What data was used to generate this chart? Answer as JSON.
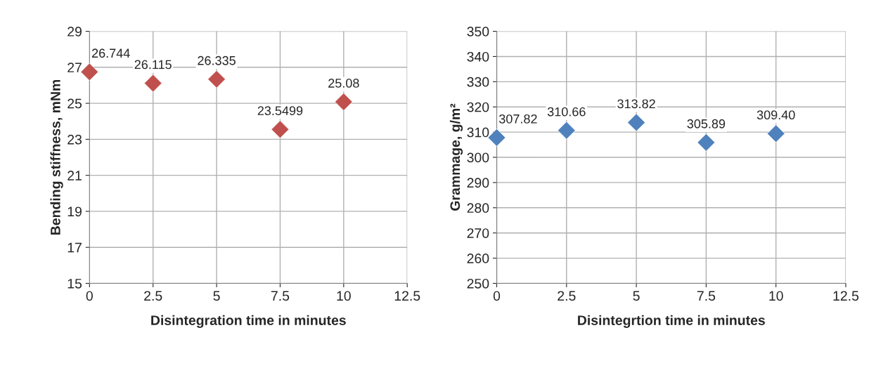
{
  "chart_data": [
    {
      "type": "scatter",
      "xlabel": "Disintegration time in minutes",
      "ylabel": "Bending stiffness, mNm",
      "x": [
        0,
        2.5,
        5,
        7.5,
        10
      ],
      "series": [
        {
          "color": "#c0504d",
          "values": [
            26.744,
            26.115,
            26.335,
            23.5499,
            25.08
          ]
        }
      ],
      "value_labels": [
        "26.744",
        "26.115",
        "26.335",
        "23.5499",
        "25.08"
      ],
      "xlim": [
        0,
        12.5
      ],
      "xticks": [
        0,
        2.5,
        5,
        7.5,
        10,
        12.5
      ],
      "ylim": [
        15,
        29
      ],
      "yticks": [
        15,
        17,
        19,
        21,
        23,
        25,
        27,
        29
      ],
      "grid": true,
      "marker": "diamond"
    },
    {
      "type": "scatter",
      "xlabel": "Disintegrtion time in minutes",
      "ylabel": "Grammage, g/m²",
      "x": [
        0,
        2.5,
        5,
        7.5,
        10
      ],
      "series": [
        {
          "color": "#4f81bd",
          "values": [
            307.82,
            310.66,
            313.82,
            305.89,
            309.4
          ]
        }
      ],
      "value_labels": [
        "307.82",
        "310.66",
        "313.82",
        "305.89",
        "309.40"
      ],
      "xlim": [
        0,
        12.5
      ],
      "xticks": [
        0,
        2.5,
        5,
        7.5,
        10,
        12.5
      ],
      "ylim": [
        250,
        350
      ],
      "yticks": [
        250,
        260,
        270,
        280,
        290,
        300,
        310,
        320,
        330,
        340,
        350
      ],
      "grid": true,
      "marker": "diamond"
    }
  ]
}
